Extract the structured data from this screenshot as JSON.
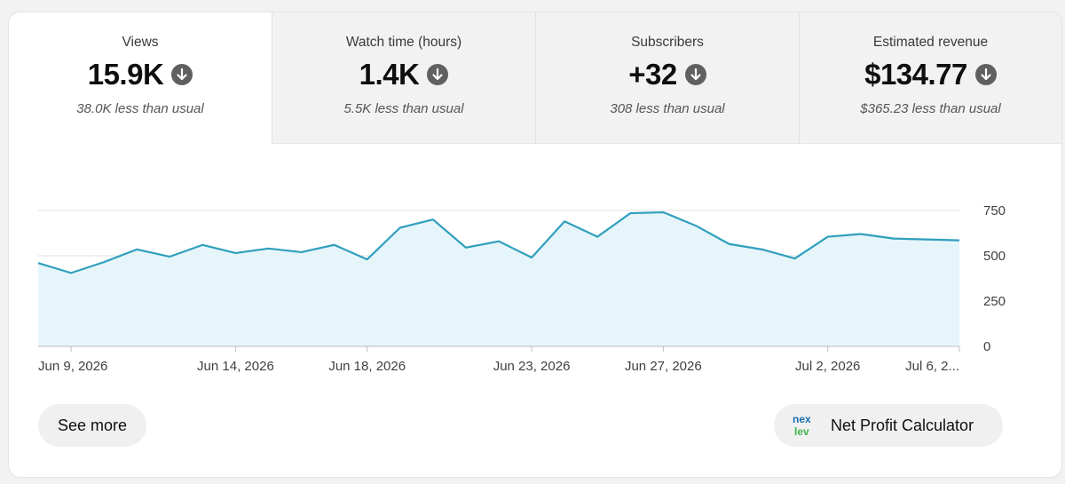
{
  "tabs": [
    {
      "label": "Views",
      "value": "15.9K",
      "comparison": "38.0K less than usual",
      "active": true,
      "icon": "arrow-down-circle-icon"
    },
    {
      "label": "Watch time (hours)",
      "value": "1.4K",
      "comparison": "5.5K less than usual",
      "active": false,
      "icon": "arrow-down-circle-icon"
    },
    {
      "label": "Subscribers",
      "value": "+32",
      "comparison": "308 less than usual",
      "active": false,
      "icon": "arrow-down-circle-icon"
    },
    {
      "label": "Estimated revenue",
      "value": "$134.77",
      "comparison": "$365.23 less than usual",
      "active": false,
      "icon": "arrow-down-circle-icon"
    }
  ],
  "chart_data": {
    "type": "area",
    "x": [
      "Jun 8",
      "Jun 9",
      "Jun 10",
      "Jun 11",
      "Jun 12",
      "Jun 13",
      "Jun 14",
      "Jun 15",
      "Jun 16",
      "Jun 17",
      "Jun 18",
      "Jun 19",
      "Jun 20",
      "Jun 21",
      "Jun 22",
      "Jun 23",
      "Jun 24",
      "Jun 25",
      "Jun 26",
      "Jun 27",
      "Jun 28",
      "Jun 29",
      "Jun 30",
      "Jul 1",
      "Jul 2",
      "Jul 3",
      "Jul 4",
      "Jul 5",
      "Jul 6"
    ],
    "series": [
      {
        "values": [
          460,
          405,
          465,
          535,
          495,
          560,
          515,
          540,
          520,
          560,
          480,
          655,
          700,
          545,
          580,
          490,
          690,
          605,
          735,
          740,
          665,
          565,
          535,
          485,
          605,
          620,
          595,
          590,
          585
        ]
      }
    ],
    "x_tick_labels": [
      "Jun 9, 2026",
      "Jun 14, 2026",
      "Jun 18, 2026",
      "Jun 23, 2026",
      "Jun 27, 2026",
      "Jul 2, 2026",
      "Jul 6, 2..."
    ],
    "y_ticks": [
      "0",
      "250",
      "500",
      "750"
    ],
    "ylim": [
      0,
      750
    ],
    "line_color": "#2f9fbd",
    "fill_color": "#e6f5fa",
    "grid": true
  },
  "actions": {
    "see_more": "See more",
    "npc_label": "Net Profit Calculator",
    "npc_logo_text": "nex lev"
  },
  "colors": {
    "icon_bg": "#606060",
    "tab_inactive_bg": "#f2f2f2"
  }
}
